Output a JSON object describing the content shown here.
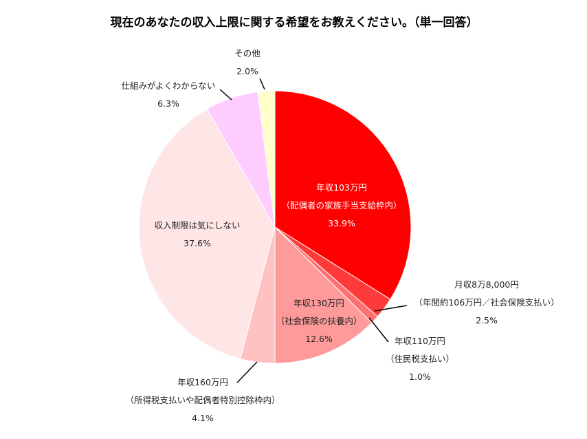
{
  "chart_data": {
    "type": "pie",
    "title": "現在のあなたの収入上限に関する希望をお教えください。（単一回答）",
    "slices": [
      {
        "label_lines": [
          "年収103万円",
          "（配偶者の家族手当支給枠内）"
        ],
        "value_label": "33.9%",
        "value": 33.9,
        "color": "#ff0000"
      },
      {
        "label_lines": [
          "月収8万8,000円",
          "（年間約106万円／社会保険支払い）"
        ],
        "value_label": "2.5%",
        "value": 2.5,
        "color": "#ff3a3a"
      },
      {
        "label_lines": [
          "年収110万円",
          "（住民税支払い）"
        ],
        "value_label": "1.0%",
        "value": 1.0,
        "color": "#ff7070"
      },
      {
        "label_lines": [
          "年収130万円",
          "（社会保険の扶養内）"
        ],
        "value_label": "12.6%",
        "value": 12.6,
        "color": "#ff9a9a"
      },
      {
        "label_lines": [
          "年収160万円",
          "（所得税支払いや配偶者特別控除枠内）"
        ],
        "value_label": "4.1%",
        "value": 4.1,
        "color": "#ffc2c2"
      },
      {
        "label_lines": [
          "収入制限は気にしない"
        ],
        "value_label": "37.6%",
        "value": 37.6,
        "color": "#ffe6e6"
      },
      {
        "label_lines": [
          "仕組みがよくわからない"
        ],
        "value_label": "6.3%",
        "value": 6.3,
        "color": "#ffccff"
      },
      {
        "label_lines": [
          "その他"
        ],
        "value_label": "2.0%",
        "value": 2.0,
        "color": "#ffffcc"
      }
    ]
  }
}
